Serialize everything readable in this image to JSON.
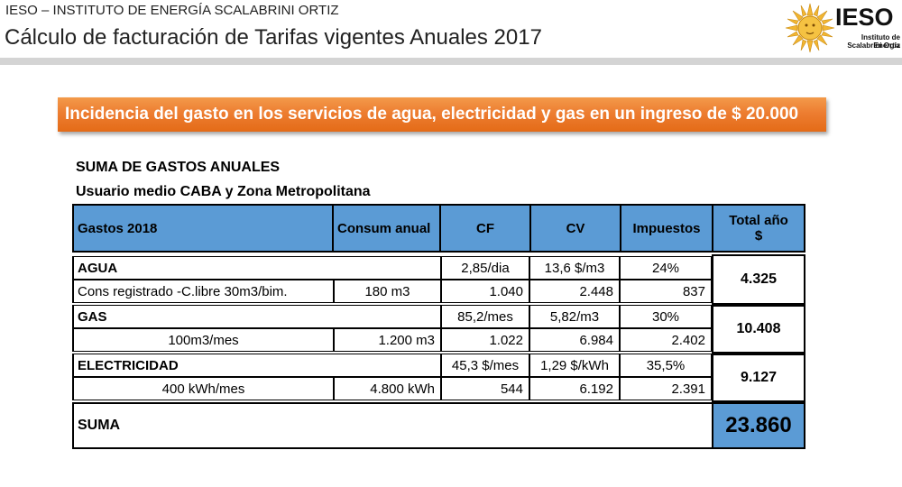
{
  "header": {
    "org": "IESO – INSTITUTO DE ENERGÍA SCALABRINI ORTIZ",
    "title": "Cálculo de facturación de Tarifas vigentes Anuales 2017",
    "logo_text": "IESO",
    "logo_sub1": "Instituto de Energía",
    "logo_sub2": "Scalabrini Ortiz"
  },
  "banner": "Incidencia del gasto en los servicios de agua, electricidad y gas en un ingreso de $ 20.000",
  "section": {
    "heading": "SUMA DE GASTOS ANUALES",
    "subheading": "Usuario medio CABA y Zona Metropolitana"
  },
  "table": {
    "headers": {
      "gastos": "Gastos 2018",
      "consumo": "Consum anual",
      "cf": "CF",
      "cv": "CV",
      "impuestos": "Impuestos",
      "total_line1": "Total año",
      "total_line2": "$"
    },
    "agua": {
      "name": "AGUA",
      "cf_rate": "2,85/dia",
      "cv_rate": "13,6 $/m3",
      "tax_rate": "24%",
      "detail": "Cons registrado -C.libre  30m3/bim.",
      "consumo": "180 m3",
      "cf": "1.040",
      "cv": "2.448",
      "tax": "837",
      "total": "4.325"
    },
    "gas": {
      "name": "GAS",
      "cf_rate": "85,2/mes",
      "cv_rate": "5,82/m3",
      "tax_rate": "30%",
      "detail": "100m3/mes",
      "consumo": "1.200 m3",
      "cf": "1.022",
      "cv": "6.984",
      "tax": "2.402",
      "total": "10.408"
    },
    "electricidad": {
      "name": "ELECTRICIDAD",
      "cf_rate": "45,3 $/mes",
      "cv_rate": "1,29 $/kWh",
      "tax_rate": "35,5%",
      "detail": "400 kWh/mes",
      "consumo": "4.800 kWh",
      "cf": "544",
      "cv": "6.192",
      "tax": "2.391",
      "total": "9.127"
    },
    "suma": {
      "label": "SUMA",
      "total": "23.860"
    }
  },
  "colors": {
    "accent_blue": "#5b9bd5",
    "banner_orange": "#ed7d31"
  }
}
